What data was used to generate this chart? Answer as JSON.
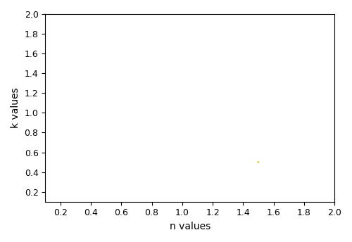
{
  "n_min": 0.1,
  "n_max": 2.0,
  "k_min": 0.1,
  "k_max": 2.0,
  "n_opt": 1.5,
  "k_opt": 0.5,
  "contour_levels": [
    -6.5,
    -6.0,
    -5.5,
    -5.0,
    -4.5,
    -4.0
  ],
  "contour_colors": [
    "#1c3a6e",
    "#2b7bba",
    "#3dbfbf",
    "#8ecf6a",
    "#e8d44d",
    "#f5e642"
  ],
  "xlabel": "n values",
  "ylabel": "k values",
  "xlim": [
    0.1,
    2.0
  ],
  "ylim": [
    0.1,
    2.0
  ],
  "xticks": [
    0.2,
    0.4,
    0.6,
    0.8,
    1.0,
    1.2,
    1.4,
    1.6,
    1.8,
    2.0
  ],
  "yticks": [
    0.2,
    0.4,
    0.6,
    0.8,
    1.0,
    1.2,
    1.4,
    1.6,
    1.8,
    2.0
  ],
  "n_grid": 400,
  "label_fontsize": 10,
  "tick_fontsize": 9
}
